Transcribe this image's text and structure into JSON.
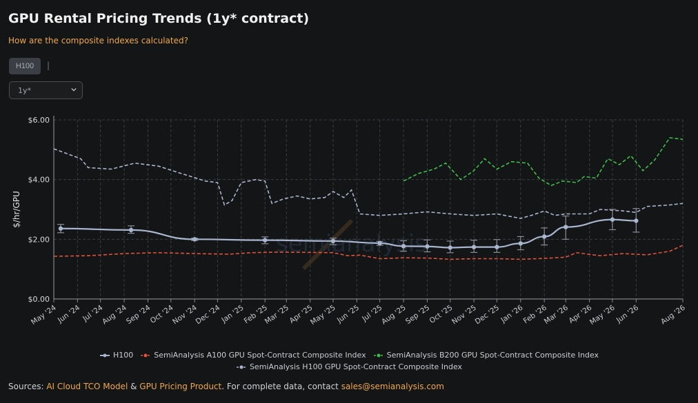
{
  "header": {
    "title": "GPU Rental Pricing Trends (1y* contract)",
    "subtitle_link": "How are the composite indexes calculated?"
  },
  "controls": {
    "gpu_tab": "H100",
    "separator": "|",
    "period_selected": "1y*"
  },
  "colors": {
    "h100": "#a9b6cf",
    "a100_index": "#e0533c",
    "b200_index": "#3fbf4a",
    "h100_index": "#a9b6cf",
    "accent": "#f0a84a"
  },
  "chart_data": {
    "type": "line",
    "ylabel": "$/hr/GPU",
    "ylim": [
      0,
      6
    ],
    "yticks": [
      0,
      2,
      4,
      6
    ],
    "ytick_labels": [
      "$0.00",
      "$2.00",
      "$4.00",
      "$6.00"
    ],
    "xlim": [
      "2024-05-01",
      "2026-08-01"
    ],
    "xtick_labels": [
      "May '24",
      "Jun '24",
      "Jul '24",
      "Aug '24",
      "Sep '24",
      "Oct '24",
      "Nov '24",
      "Dec '24",
      "Jan '25",
      "Feb '25",
      "Mar '25",
      "Apr '25",
      "May '25",
      "Jun '25",
      "Jul '25",
      "Aug '25",
      "Sep '25",
      "Oct '25",
      "Nov '25",
      "Dec '25",
      "Jan '26",
      "Feb '26",
      "Mar '26",
      "Apr '26",
      "May '26",
      "Jun '26",
      "Aug '26"
    ],
    "xtick_dates": [
      "2024-05-01",
      "2024-06-01",
      "2024-07-01",
      "2024-08-01",
      "2024-09-01",
      "2024-10-01",
      "2024-11-01",
      "2024-12-01",
      "2025-01-01",
      "2025-02-01",
      "2025-03-01",
      "2025-04-01",
      "2025-05-01",
      "2025-06-01",
      "2025-07-01",
      "2025-08-01",
      "2025-09-01",
      "2025-10-01",
      "2025-11-01",
      "2025-12-01",
      "2026-01-01",
      "2026-02-01",
      "2026-03-01",
      "2026-04-01",
      "2026-05-01",
      "2026-06-01",
      "2026-08-01"
    ],
    "grid": true,
    "legend_position": "bottom",
    "watermark": "semianalysis",
    "series": [
      {
        "name": "H100",
        "style": "solid-markers-errorbars",
        "x": [
          "2024-05-10",
          "2024-08-10",
          "2024-11-01",
          "2025-02-01",
          "2025-05-01",
          "2025-07-01",
          "2025-08-01",
          "2025-09-01",
          "2025-10-01",
          "2025-11-01",
          "2025-12-01",
          "2026-01-01",
          "2026-02-01",
          "2026-03-01",
          "2026-05-01",
          "2026-06-01"
        ],
        "values": [
          2.36,
          2.31,
          2.0,
          1.97,
          1.94,
          1.87,
          1.77,
          1.76,
          1.72,
          1.74,
          1.74,
          1.86,
          2.09,
          2.41,
          2.66,
          2.62
        ],
        "err_low": [
          2.22,
          2.2,
          1.96,
          1.85,
          1.82,
          1.8,
          1.6,
          1.58,
          1.55,
          1.56,
          1.56,
          1.65,
          1.81,
          2.0,
          2.32,
          2.24
        ],
        "err_high": [
          2.5,
          2.45,
          2.04,
          2.08,
          2.04,
          1.93,
          1.95,
          1.98,
          1.94,
          1.97,
          1.99,
          2.09,
          2.38,
          2.78,
          3.0,
          3.03
        ]
      },
      {
        "name": "SemiAnalysis A100 GPU Spot-Contract Composite Index",
        "style": "dashed",
        "x": [
          "2024-05-01",
          "2024-06-15",
          "2024-08-01",
          "2024-09-15",
          "2024-11-01",
          "2024-12-15",
          "2025-01-15",
          "2025-02-15",
          "2025-04-01",
          "2025-05-01",
          "2025-05-20",
          "2025-06-05",
          "2025-07-01",
          "2025-08-01",
          "2025-09-01",
          "2025-10-01",
          "2025-11-01",
          "2025-12-01",
          "2026-01-01",
          "2026-02-01",
          "2026-03-01",
          "2026-03-15",
          "2026-04-15",
          "2026-05-15",
          "2026-06-15",
          "2026-07-15",
          "2026-08-01"
        ],
        "values": [
          1.43,
          1.45,
          1.52,
          1.55,
          1.52,
          1.5,
          1.55,
          1.57,
          1.56,
          1.55,
          1.45,
          1.47,
          1.35,
          1.38,
          1.37,
          1.33,
          1.35,
          1.35,
          1.33,
          1.36,
          1.4,
          1.55,
          1.45,
          1.52,
          1.48,
          1.6,
          1.8
        ]
      },
      {
        "name": "SemiAnalysis B200 GPU Spot-Contract Composite Index",
        "style": "dashed",
        "x": [
          "2025-08-01",
          "2025-08-20",
          "2025-09-10",
          "2025-09-25",
          "2025-10-15",
          "2025-11-01",
          "2025-11-15",
          "2025-12-01",
          "2025-12-20",
          "2026-01-10",
          "2026-01-25",
          "2026-02-10",
          "2026-02-25",
          "2026-03-15",
          "2026-03-25",
          "2026-04-10",
          "2026-04-25",
          "2026-05-10",
          "2026-05-25",
          "2026-06-10",
          "2026-06-25",
          "2026-07-15",
          "2026-08-01"
        ],
        "values": [
          3.95,
          4.2,
          4.35,
          4.55,
          4.0,
          4.3,
          4.7,
          4.35,
          4.6,
          4.55,
          4.05,
          3.8,
          3.95,
          3.9,
          4.1,
          4.05,
          4.7,
          4.5,
          4.8,
          4.3,
          4.65,
          5.4,
          5.35
        ]
      },
      {
        "name": "SemiAnalysis H100 GPU Spot-Contract Composite Index",
        "style": "dashed",
        "x": [
          "2024-05-01",
          "2024-05-20",
          "2024-06-05",
          "2024-06-15",
          "2024-07-15",
          "2024-08-15",
          "2024-09-15",
          "2024-10-15",
          "2024-11-15",
          "2024-12-01",
          "2024-12-10",
          "2024-12-20",
          "2025-01-01",
          "2025-01-20",
          "2025-02-01",
          "2025-02-10",
          "2025-02-25",
          "2025-03-15",
          "2025-04-01",
          "2025-04-20",
          "2025-05-01",
          "2025-05-15",
          "2025-05-25",
          "2025-06-05",
          "2025-07-01",
          "2025-08-01",
          "2025-09-01",
          "2025-10-01",
          "2025-11-01",
          "2025-12-01",
          "2026-01-01",
          "2026-01-15",
          "2026-02-01",
          "2026-02-15",
          "2026-03-01",
          "2026-04-01",
          "2026-04-15",
          "2026-05-15",
          "2026-06-01",
          "2026-06-15",
          "2026-07-15",
          "2026-08-01"
        ],
        "values": [
          5.03,
          4.85,
          4.7,
          4.4,
          4.35,
          4.55,
          4.45,
          4.2,
          3.95,
          3.9,
          3.15,
          3.3,
          3.9,
          4.0,
          3.95,
          3.2,
          3.35,
          3.45,
          3.35,
          3.4,
          3.6,
          3.4,
          3.65,
          2.85,
          2.8,
          2.85,
          2.92,
          2.85,
          2.8,
          2.85,
          2.7,
          2.8,
          2.95,
          2.8,
          2.85,
          2.85,
          3.0,
          2.95,
          2.9,
          3.1,
          3.15,
          3.2
        ]
      }
    ]
  },
  "legend": {
    "row1": [
      "H100",
      "SemiAnalysis A100 GPU Spot-Contract Composite Index",
      "SemiAnalysis B200 GPU Spot-Contract Composite Index"
    ],
    "row2": [
      "SemiAnalysis H100 GPU Spot-Contract Composite Index"
    ]
  },
  "footer": {
    "prefix": "Sources: ",
    "link1": "AI Cloud TCO Model",
    "amp": " & ",
    "link2": "GPU Pricing Product",
    "middle": ". For complete data, contact ",
    "email": "sales@semianalysis.com"
  }
}
